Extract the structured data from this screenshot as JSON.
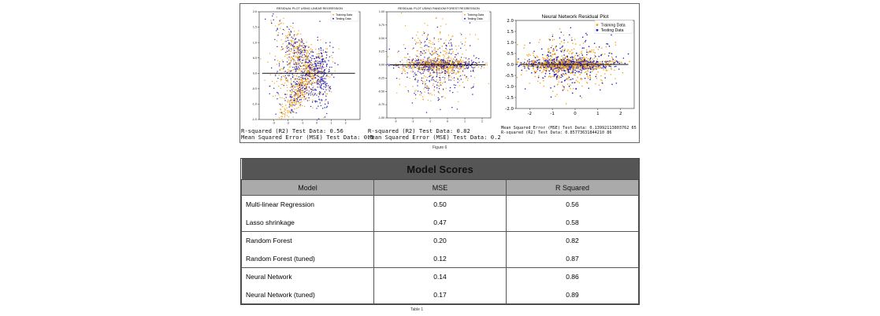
{
  "figure": {
    "caption": "Figure 6",
    "panels": [
      {
        "title": "RESIDUAL PLOT USING LINEAR REGRESSION",
        "legend": [
          "Training Data",
          "Testing Data"
        ],
        "metrics": [
          "R-squared (R2) Test Data: 0.56",
          "Mean Squared Error (MSE) Test Data: 0.5"
        ]
      },
      {
        "title": "RESIDUAL PLOT USING RANDOM FOREST REGRESSION",
        "legend": [
          "Training Data",
          "Testing Data"
        ],
        "metrics": [
          "R-squared (R2) Test Data: 0.82",
          "Mean Squared Error (MSE) Test Data: 0.2"
        ]
      },
      {
        "title": "Neural Network Residual Plot",
        "legend": [
          "Training Data",
          "Testing Data"
        ],
        "metrics": [
          "Mean Squared Error (MSE) Test Data: 0.13992113803762 65",
          "R-squared (R2) Test Data: 0.85773631844210 86"
        ]
      }
    ]
  },
  "chart_data": [
    {
      "type": "scatter",
      "title": "RESIDUAL PLOT USING LINEAR REGRESSION",
      "xlim": [
        -4,
        3
      ],
      "ylim": [
        -1.5,
        2.0
      ],
      "xticks": [
        "-3",
        "-2",
        "-1",
        "0",
        "1",
        "2"
      ],
      "yticks": [
        "2.0",
        "1.5",
        "1.0",
        "0.5",
        "0.0",
        "-0.5",
        "-1.0",
        "-1.5"
      ],
      "series": [
        {
          "name": "Training Data",
          "color": "#f5a623"
        },
        {
          "name": "Testing Data",
          "color": "#1f1fbf"
        }
      ]
    },
    {
      "type": "scatter",
      "title": "RESIDUAL PLOT USING RANDOM FOREST REGRESSION",
      "xlim": [
        -3.5,
        2.5
      ],
      "ylim": [
        -1.0,
        1.0
      ],
      "xticks": [
        "-3",
        "-2",
        "-1",
        "0",
        "1",
        "2"
      ],
      "yticks": [
        "1.00",
        "0.75",
        "0.50",
        "0.25",
        "0.00",
        "-0.25",
        "-0.50",
        "-0.75",
        "-1.00"
      ],
      "series": [
        {
          "name": "Training Data",
          "color": "#f5a623"
        },
        {
          "name": "Testing Data",
          "color": "#1f1fbf"
        }
      ]
    },
    {
      "type": "scatter",
      "title": "Neural Network Residual Plot",
      "xlim": [
        -2.6,
        2.6
      ],
      "ylim": [
        -2.0,
        2.0
      ],
      "xticks": [
        "-2",
        "-1",
        "0",
        "1",
        "2"
      ],
      "yticks": [
        "2.0",
        "1.5",
        "1.0",
        "0.5",
        "0.0",
        "-0.5",
        "-1.0",
        "-1.5",
        "-2.0"
      ],
      "series": [
        {
          "name": "Training Data",
          "color": "#f5a623"
        },
        {
          "name": "Testing Data",
          "color": "#1f1fbf"
        }
      ]
    },
    {
      "type": "table",
      "title": "Model Scores",
      "columns": [
        "Model",
        "MSE",
        "R Squared"
      ],
      "rows": [
        [
          "Multi-linear Regression",
          "0.50",
          "0.56"
        ],
        [
          "Lasso shrinkage",
          "0.47",
          "0.58"
        ],
        [
          "Random Forest",
          "0.20",
          "0.82"
        ],
        [
          "Random Forest (tuned)",
          "0.12",
          "0.87"
        ],
        [
          "Neural Network",
          "0.14",
          "0.86"
        ],
        [
          "Neural Network (tuned)",
          "0.17",
          "0.89"
        ]
      ]
    }
  ],
  "table": {
    "title": "Model Scores",
    "columns": [
      "Model",
      "MSE",
      "R Squared"
    ],
    "caption": "Table 1"
  }
}
